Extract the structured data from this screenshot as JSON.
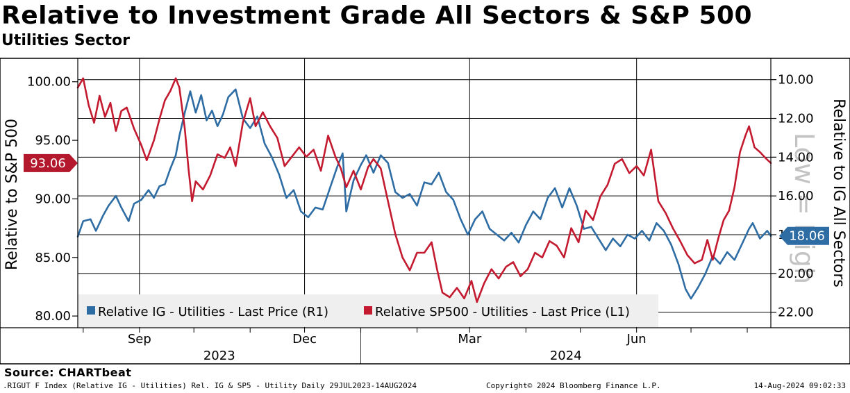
{
  "header": {
    "title": "Relative to Investment Grade All Sectors & S&P 500",
    "subtitle": "Utilities Sector"
  },
  "footer": {
    "source": "Source: CHARTbeat",
    "index_info": ".RIGUT F Index (Relative IG - Utilities) Rel. IG & SP5 - Utility  Daily 29JUL2023-14AUG2024",
    "copyright": "Copyright© 2024 Bloomberg Finance L.P.",
    "timestamp": "14-Aug-2024 09:02:33"
  },
  "chart_data": {
    "type": "line",
    "watermark": "Low = High",
    "x_range": [
      "2023-07-29",
      "2024-08-14"
    ],
    "month_ticks": [
      {
        "label": "Sep",
        "date": "2023-09-01"
      },
      {
        "label": "Dec",
        "date": "2023-12-01"
      },
      {
        "label": "Mar",
        "date": "2024-03-01"
      },
      {
        "label": "Jun",
        "date": "2024-06-01"
      }
    ],
    "year_labels": [
      "2023",
      "2024"
    ],
    "left_axis": {
      "title": "Relative to S&P 500",
      "range": [
        79,
        102
      ],
      "ticks": [
        "80.00",
        "85.00",
        "90.00",
        "95.00",
        "100.00"
      ],
      "last_value_label": "93.06",
      "last_value": 93.06
    },
    "right_axis": {
      "title": "Relative to IG All Sectors",
      "inverted": true,
      "range": [
        8.9,
        22.8
      ],
      "ticks": [
        "10.00",
        "12.00",
        "14.00",
        "16.00",
        "18.00",
        "20.00",
        "22.00"
      ],
      "last_value_label": "18.06",
      "last_value": 18.06
    },
    "legend": {
      "placement": "bottom-left",
      "items": [
        "Relative IG - Utilities - Last Price (R1)",
        "Relative SP500 - Utilities - Last Price (L1)"
      ]
    },
    "series": [
      {
        "name": "Relative IG - Utilities - Last Price (R1)",
        "axis": "right",
        "color": "#2e6ca4",
        "points": [
          [
            "2023-07-29",
            18.1
          ],
          [
            "2023-08-01",
            17.3
          ],
          [
            "2023-08-05",
            17.2
          ],
          [
            "2023-08-08",
            17.8
          ],
          [
            "2023-08-12",
            17.0
          ],
          [
            "2023-08-15",
            16.5
          ],
          [
            "2023-08-19",
            16.0
          ],
          [
            "2023-08-22",
            16.6
          ],
          [
            "2023-08-26",
            17.3
          ],
          [
            "2023-08-29",
            16.4
          ],
          [
            "2023-09-02",
            16.2
          ],
          [
            "2023-09-06",
            15.7
          ],
          [
            "2023-09-09",
            16.1
          ],
          [
            "2023-09-12",
            15.5
          ],
          [
            "2023-09-15",
            15.4
          ],
          [
            "2023-09-18",
            14.6
          ],
          [
            "2023-09-21",
            13.9
          ],
          [
            "2023-09-23",
            12.9
          ],
          [
            "2023-09-26",
            11.7
          ],
          [
            "2023-09-29",
            10.6
          ],
          [
            "2023-10-02",
            11.7
          ],
          [
            "2023-10-05",
            10.8
          ],
          [
            "2023-10-08",
            12.1
          ],
          [
            "2023-10-11",
            11.6
          ],
          [
            "2023-10-14",
            12.4
          ],
          [
            "2023-10-17",
            11.8
          ],
          [
            "2023-10-20",
            10.9
          ],
          [
            "2023-10-24",
            10.5
          ],
          [
            "2023-10-28",
            12.0
          ],
          [
            "2023-11-01",
            12.5
          ],
          [
            "2023-11-05",
            11.9
          ],
          [
            "2023-11-09",
            13.3
          ],
          [
            "2023-11-13",
            14.0
          ],
          [
            "2023-11-17",
            14.9
          ],
          [
            "2023-11-21",
            16.1
          ],
          [
            "2023-11-25",
            15.7
          ],
          [
            "2023-11-29",
            16.8
          ],
          [
            "2023-12-03",
            17.1
          ],
          [
            "2023-12-07",
            16.6
          ],
          [
            "2023-12-11",
            16.7
          ],
          [
            "2023-12-15",
            15.6
          ],
          [
            "2023-12-19",
            14.5
          ],
          [
            "2023-12-22",
            13.8
          ],
          [
            "2023-12-24",
            16.8
          ],
          [
            "2023-12-28",
            15.2
          ],
          [
            "2024-01-01",
            14.4
          ],
          [
            "2024-01-04",
            13.9
          ],
          [
            "2024-01-08",
            14.8
          ],
          [
            "2024-01-12",
            13.9
          ],
          [
            "2024-01-16",
            14.3
          ],
          [
            "2024-01-20",
            15.8
          ],
          [
            "2024-01-24",
            16.1
          ],
          [
            "2024-01-28",
            15.9
          ],
          [
            "2024-02-01",
            16.5
          ],
          [
            "2024-02-05",
            15.3
          ],
          [
            "2024-02-09",
            15.4
          ],
          [
            "2024-02-13",
            14.8
          ],
          [
            "2024-02-17",
            15.8
          ],
          [
            "2024-02-21",
            16.2
          ],
          [
            "2024-02-25",
            17.2
          ],
          [
            "2024-02-29",
            18.0
          ],
          [
            "2024-03-04",
            17.2
          ],
          [
            "2024-03-08",
            16.8
          ],
          [
            "2024-03-12",
            17.7
          ],
          [
            "2024-03-16",
            18.0
          ],
          [
            "2024-03-20",
            18.3
          ],
          [
            "2024-03-24",
            17.9
          ],
          [
            "2024-03-28",
            18.4
          ],
          [
            "2024-04-01",
            17.5
          ],
          [
            "2024-04-05",
            16.8
          ],
          [
            "2024-04-09",
            17.2
          ],
          [
            "2024-04-13",
            16.1
          ],
          [
            "2024-04-17",
            15.6
          ],
          [
            "2024-04-21",
            16.6
          ],
          [
            "2024-04-25",
            15.6
          ],
          [
            "2024-04-29",
            16.5
          ],
          [
            "2024-05-03",
            17.7
          ],
          [
            "2024-05-07",
            17.6
          ],
          [
            "2024-05-11",
            18.2
          ],
          [
            "2024-05-15",
            18.8
          ],
          [
            "2024-05-19",
            18.2
          ],
          [
            "2024-05-23",
            18.6
          ],
          [
            "2024-05-27",
            18.0
          ],
          [
            "2024-05-31",
            18.2
          ],
          [
            "2024-06-04",
            17.8
          ],
          [
            "2024-06-08",
            18.3
          ],
          [
            "2024-06-12",
            17.4
          ],
          [
            "2024-06-16",
            17.8
          ],
          [
            "2024-06-20",
            18.5
          ],
          [
            "2024-06-24",
            19.5
          ],
          [
            "2024-06-28",
            20.8
          ],
          [
            "2024-07-01",
            21.3
          ],
          [
            "2024-07-05",
            20.7
          ],
          [
            "2024-07-09",
            20.0
          ],
          [
            "2024-07-13",
            19.1
          ],
          [
            "2024-07-17",
            19.5
          ],
          [
            "2024-07-21",
            18.9
          ],
          [
            "2024-07-25",
            19.3
          ],
          [
            "2024-07-29",
            18.5
          ],
          [
            "2024-08-02",
            17.7
          ],
          [
            "2024-08-04",
            17.4
          ],
          [
            "2024-08-08",
            18.2
          ],
          [
            "2024-08-12",
            17.8
          ],
          [
            "2024-08-14",
            18.06
          ]
        ]
      },
      {
        "name": "Relative SP500 - Utilities - Last Price (L1)",
        "axis": "left",
        "color": "#c41a30",
        "points": [
          [
            "2023-07-29",
            99.5
          ],
          [
            "2023-08-01",
            100.3
          ],
          [
            "2023-08-04",
            98.0
          ],
          [
            "2023-08-07",
            96.5
          ],
          [
            "2023-08-10",
            98.8
          ],
          [
            "2023-08-13",
            97.0
          ],
          [
            "2023-08-16",
            98.2
          ],
          [
            "2023-08-19",
            95.8
          ],
          [
            "2023-08-22",
            97.5
          ],
          [
            "2023-08-25",
            97.8
          ],
          [
            "2023-08-29",
            96.0
          ],
          [
            "2023-09-02",
            94.6
          ],
          [
            "2023-09-05",
            93.3
          ],
          [
            "2023-09-09",
            95.0
          ],
          [
            "2023-09-12",
            96.8
          ],
          [
            "2023-09-15",
            98.4
          ],
          [
            "2023-09-18",
            99.2
          ],
          [
            "2023-09-21",
            100.3
          ],
          [
            "2023-09-23",
            99.5
          ],
          [
            "2023-09-26",
            96.0
          ],
          [
            "2023-09-28",
            92.6
          ],
          [
            "2023-09-30",
            89.8
          ],
          [
            "2023-10-02",
            91.5
          ],
          [
            "2023-10-06",
            90.8
          ],
          [
            "2023-10-10",
            92.0
          ],
          [
            "2023-10-14",
            93.8
          ],
          [
            "2023-10-18",
            93.5
          ],
          [
            "2023-10-21",
            94.4
          ],
          [
            "2023-10-24",
            92.8
          ],
          [
            "2023-10-28",
            96.5
          ],
          [
            "2023-11-01",
            98.6
          ],
          [
            "2023-11-04",
            96.2
          ],
          [
            "2023-11-08",
            97.4
          ],
          [
            "2023-11-12",
            96.2
          ],
          [
            "2023-11-16",
            95.2
          ],
          [
            "2023-11-20",
            92.8
          ],
          [
            "2023-11-24",
            93.6
          ],
          [
            "2023-11-28",
            94.4
          ],
          [
            "2023-12-02",
            93.6
          ],
          [
            "2023-12-06",
            94.2
          ],
          [
            "2023-12-10",
            92.4
          ],
          [
            "2023-12-14",
            95.4
          ],
          [
            "2023-12-18",
            93.6
          ],
          [
            "2023-12-21",
            92.6
          ],
          [
            "2023-12-24",
            91.0
          ],
          [
            "2023-12-28",
            92.4
          ],
          [
            "2024-01-01",
            90.8
          ],
          [
            "2024-01-05",
            92.7
          ],
          [
            "2024-01-08",
            93.4
          ],
          [
            "2024-01-12",
            92.6
          ],
          [
            "2024-01-16",
            89.8
          ],
          [
            "2024-01-20",
            87.0
          ],
          [
            "2024-01-24",
            85.0
          ],
          [
            "2024-01-28",
            83.9
          ],
          [
            "2024-02-01",
            85.4
          ],
          [
            "2024-02-05",
            85.4
          ],
          [
            "2024-02-09",
            86.3
          ],
          [
            "2024-02-12",
            84.0
          ],
          [
            "2024-02-15",
            82.0
          ],
          [
            "2024-02-19",
            81.6
          ],
          [
            "2024-02-23",
            82.4
          ],
          [
            "2024-02-27",
            81.5
          ],
          [
            "2024-03-02",
            83.0
          ],
          [
            "2024-03-05",
            81.2
          ],
          [
            "2024-03-09",
            82.8
          ],
          [
            "2024-03-13",
            84.0
          ],
          [
            "2024-03-17",
            83.2
          ],
          [
            "2024-03-21",
            84.2
          ],
          [
            "2024-03-25",
            84.6
          ],
          [
            "2024-03-29",
            83.4
          ],
          [
            "2024-04-02",
            84.0
          ],
          [
            "2024-04-06",
            85.4
          ],
          [
            "2024-04-10",
            85.0
          ],
          [
            "2024-04-14",
            86.4
          ],
          [
            "2024-04-18",
            86.0
          ],
          [
            "2024-04-22",
            85.0
          ],
          [
            "2024-04-26",
            87.5
          ],
          [
            "2024-04-30",
            86.3
          ],
          [
            "2024-05-04",
            89.0
          ],
          [
            "2024-05-08",
            88.2
          ],
          [
            "2024-05-12",
            90.2
          ],
          [
            "2024-05-16",
            91.2
          ],
          [
            "2024-05-20",
            93.0
          ],
          [
            "2024-05-24",
            93.4
          ],
          [
            "2024-05-28",
            92.2
          ],
          [
            "2024-06-01",
            92.8
          ],
          [
            "2024-06-05",
            92.0
          ],
          [
            "2024-06-09",
            94.2
          ],
          [
            "2024-06-13",
            89.8
          ],
          [
            "2024-06-17",
            88.8
          ],
          [
            "2024-06-21",
            87.5
          ],
          [
            "2024-06-25",
            86.4
          ],
          [
            "2024-06-29",
            85.2
          ],
          [
            "2024-07-03",
            84.5
          ],
          [
            "2024-07-07",
            84.8
          ],
          [
            "2024-07-10",
            86.5
          ],
          [
            "2024-07-13",
            84.8
          ],
          [
            "2024-07-16",
            86.6
          ],
          [
            "2024-07-19",
            88.2
          ],
          [
            "2024-07-22",
            89.0
          ],
          [
            "2024-07-25",
            91.0
          ],
          [
            "2024-07-28",
            94.0
          ],
          [
            "2024-07-31",
            95.4
          ],
          [
            "2024-08-02",
            96.2
          ],
          [
            "2024-08-05",
            94.4
          ],
          [
            "2024-08-08",
            94.0
          ],
          [
            "2024-08-11",
            93.5
          ],
          [
            "2024-08-14",
            93.06
          ]
        ]
      }
    ]
  }
}
